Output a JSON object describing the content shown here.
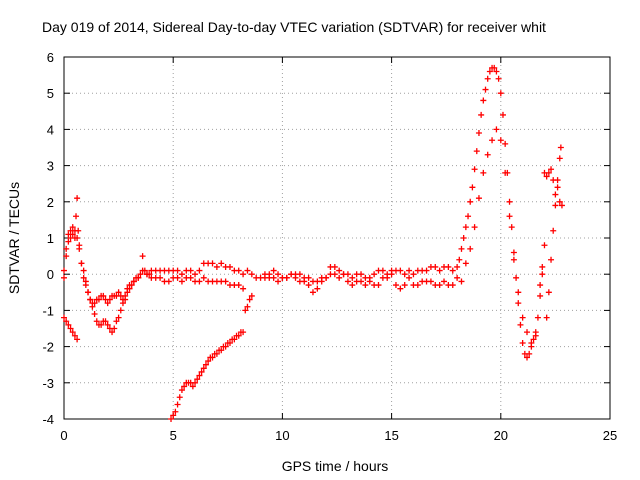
{
  "chart_data": {
    "type": "scatter",
    "title": "Day 019 of 2014, Sidereal Day-to-day VTEC variation (SDTVAR) for receiver whit",
    "xlabel": "GPS time / hours",
    "ylabel": "SDTVAR / TECUs",
    "xlim": [
      0,
      25
    ],
    "ylim": [
      -4,
      6
    ],
    "xticks": [
      "0",
      "5",
      "10",
      "15",
      "20",
      "25"
    ],
    "yticks": [
      "-4",
      "-3",
      "-2",
      "-1",
      "0",
      "1",
      "2",
      "3",
      "4",
      "5",
      "6"
    ],
    "grid": true,
    "marker": "+",
    "marker_color": "#ff0000",
    "series": [
      {
        "name": "main",
        "x": [
          0.0,
          0.1,
          0.2,
          0.3,
          0.4,
          0.5,
          0.6,
          0.7,
          0.8,
          0.9,
          1.0,
          1.1,
          1.2,
          1.3,
          1.4,
          1.5,
          1.6,
          1.7,
          1.8,
          1.9,
          2.0,
          2.1,
          2.2,
          2.3,
          2.4,
          2.5,
          2.6,
          2.7,
          2.8,
          2.9,
          3.0,
          3.1,
          3.2,
          3.3,
          3.4,
          3.5,
          3.6,
          3.7,
          3.8,
          3.9,
          4.0,
          4.2,
          4.4,
          4.6,
          4.8,
          5.0,
          5.2,
          5.4,
          5.6,
          5.8,
          6.0,
          6.2,
          6.4,
          6.6,
          6.8,
          7.0,
          7.2,
          7.4,
          7.6,
          7.8,
          8.0,
          8.2,
          8.4,
          8.6,
          8.8,
          9.0,
          9.2,
          9.4,
          9.6,
          9.8,
          10.0,
          10.2,
          10.4,
          10.6,
          10.8,
          11.0,
          11.2,
          11.4,
          11.6,
          11.8,
          12.0,
          12.2,
          12.4,
          12.6,
          12.8,
          13.0,
          13.2,
          13.4,
          13.6,
          13.8,
          14.0,
          14.2,
          14.4,
          14.6,
          14.8,
          15.0,
          15.2,
          15.4,
          15.6,
          15.8,
          16.0,
          16.2,
          16.4,
          16.6,
          16.8,
          17.0,
          17.2,
          17.4,
          17.6,
          17.8,
          18.0,
          18.1,
          18.2,
          18.3,
          18.4,
          18.5,
          18.6,
          18.7,
          18.8,
          18.9,
          19.0,
          19.1,
          19.2,
          19.3,
          19.4,
          19.5,
          19.6,
          19.7,
          19.8,
          19.9,
          20.0,
          20.1,
          20.2,
          20.3,
          20.4,
          20.5,
          20.6,
          20.7,
          20.8,
          20.9,
          21.0,
          21.1,
          21.2,
          21.3,
          21.4,
          21.5,
          21.6,
          21.7,
          21.8,
          21.9
        ],
        "y": [
          0.1,
          0.7,
          1.1,
          1.2,
          1.3,
          1.2,
          1.0,
          0.7,
          0.3,
          0.1,
          -0.2,
          -0.5,
          -0.7,
          -0.8,
          -0.8,
          -0.7,
          -0.7,
          -0.6,
          -0.6,
          -0.7,
          -0.8,
          -0.7,
          -0.6,
          -0.6,
          -0.6,
          -0.5,
          -0.6,
          -0.7,
          -0.6,
          -0.4,
          -0.3,
          -0.3,
          -0.2,
          -0.1,
          -0.1,
          0.0,
          0.1,
          0.1,
          0.0,
          0.0,
          0.1,
          0.1,
          0.1,
          0.1,
          0.1,
          0.1,
          0.1,
          0.0,
          0.1,
          0.1,
          0.0,
          0.1,
          0.3,
          0.3,
          0.3,
          0.2,
          0.3,
          0.2,
          0.2,
          0.1,
          0.1,
          0.0,
          0.1,
          0.0,
          -0.1,
          -0.1,
          0.0,
          -0.1,
          -0.1,
          -0.2,
          -0.1,
          -0.1,
          0.0,
          -0.1,
          -0.2,
          -0.2,
          -0.1,
          -0.2,
          -0.2,
          -0.1,
          -0.1,
          0.0,
          0.0,
          -0.1,
          0.0,
          0.0,
          -0.1,
          0.0,
          0.0,
          -0.1,
          -0.1,
          0.0,
          0.1,
          0.1,
          0.0,
          0.0,
          0.1,
          0.1,
          0.0,
          0.1,
          0.0,
          0.1,
          0.1,
          0.1,
          0.2,
          0.2,
          0.1,
          0.2,
          0.2,
          0.1,
          0.2,
          0.4,
          0.7,
          1.0,
          1.3,
          1.6,
          2.0,
          2.4,
          2.9,
          3.4,
          3.9,
          4.4,
          4.8,
          5.1,
          5.4,
          5.6,
          5.7,
          5.7,
          5.6,
          5.4,
          5.0,
          4.4,
          3.6,
          2.8,
          2.0,
          1.3,
          0.6,
          -0.1,
          -0.8,
          -1.4,
          -1.9,
          -2.2,
          -2.3,
          -2.2,
          -2.0,
          -1.8,
          -1.6,
          -1.2,
          -0.6,
          0.0
        ]
      },
      {
        "name": "secondary",
        "x": [
          0.0,
          0.1,
          0.2,
          0.3,
          0.4,
          0.5,
          0.55,
          0.6,
          0.65,
          0.7,
          0.8,
          0.9,
          1.0,
          1.1,
          1.2,
          1.3,
          1.4,
          1.5,
          1.6,
          1.7,
          1.8,
          1.9,
          2.0,
          2.1,
          2.2,
          2.3,
          2.4,
          2.5,
          2.6,
          2.7,
          2.8,
          2.9,
          3.0,
          3.2,
          3.4,
          3.6,
          3.8,
          4.0,
          4.2,
          4.4,
          4.6,
          4.8,
          5.0,
          5.2,
          5.4,
          5.6,
          5.8,
          6.0,
          6.2,
          6.4,
          6.6,
          6.8,
          7.0,
          7.2,
          7.4,
          7.6,
          7.8,
          8.0,
          8.2,
          9.2,
          9.4,
          9.6,
          9.8,
          10.0,
          10.2,
          10.4,
          10.6,
          10.8,
          11.0,
          11.2,
          11.4,
          11.6,
          11.8,
          12.0,
          12.2,
          12.4,
          12.6,
          12.8,
          13.0,
          13.2,
          13.4,
          13.6,
          13.8,
          14.0,
          14.2,
          14.4,
          14.6,
          14.8,
          15.0,
          15.2,
          15.4,
          15.6,
          15.8,
          16.0,
          16.2,
          16.4,
          16.6,
          16.8,
          17.0,
          17.2,
          17.4,
          17.6,
          17.8,
          18.0,
          18.2,
          18.4,
          18.6,
          18.8,
          19.0,
          19.2,
          19.4,
          19.6,
          19.8,
          20.0,
          20.2,
          20.4,
          20.6,
          20.8,
          21.0,
          21.2,
          21.4,
          21.6
        ],
        "y": [
          -0.1,
          0.5,
          0.9,
          1.0,
          1.1,
          1.0,
          1.6,
          2.1,
          1.2,
          0.8,
          0.3,
          -0.1,
          -0.3,
          -0.5,
          -0.7,
          -0.9,
          -1.1,
          -1.3,
          -1.4,
          -1.4,
          -1.3,
          -1.3,
          -1.4,
          -1.5,
          -1.6,
          -1.5,
          -1.3,
          -1.2,
          -1.0,
          -0.8,
          -0.7,
          -0.5,
          -0.4,
          -0.2,
          -0.1,
          0.5,
          0.0,
          -0.1,
          -0.1,
          -0.1,
          -0.2,
          -0.2,
          -0.1,
          -0.1,
          -0.2,
          -0.1,
          -0.1,
          -0.2,
          -0.2,
          -0.1,
          -0.2,
          -0.2,
          -0.2,
          -0.2,
          -0.2,
          -0.3,
          -0.3,
          -0.3,
          -0.4,
          -0.1,
          0.0,
          0.1,
          0.0,
          -0.1,
          -0.1,
          0.0,
          0.0,
          0.0,
          -0.1,
          -0.3,
          -0.5,
          -0.4,
          -0.2,
          -0.1,
          0.2,
          0.2,
          0.1,
          0.0,
          -0.2,
          -0.3,
          -0.2,
          -0.2,
          -0.3,
          -0.2,
          -0.3,
          -0.3,
          -0.1,
          -0.1,
          0.1,
          -0.3,
          -0.4,
          -0.3,
          -0.1,
          -0.3,
          -0.3,
          -0.2,
          -0.2,
          -0.2,
          -0.3,
          -0.3,
          -0.2,
          -0.3,
          -0.3,
          -0.1,
          -0.2,
          0.3,
          0.7,
          1.3,
          2.1,
          2.8,
          3.3,
          3.7,
          4.0,
          3.7,
          2.8,
          1.6,
          0.4,
          -0.5,
          -1.2,
          -1.6,
          -1.9,
          -1.7
        ]
      },
      {
        "name": "segment-early-negative",
        "x": [
          0.0,
          0.1,
          0.2,
          0.3,
          0.4,
          0.5,
          0.6
        ],
        "y": [
          -1.2,
          -1.3,
          -1.4,
          -1.5,
          -1.6,
          -1.7,
          -1.8
        ]
      },
      {
        "name": "segment-rising-negative",
        "x": [
          4.9,
          5.0,
          5.1,
          5.2,
          5.3,
          5.4,
          5.5,
          5.6,
          5.7,
          5.8,
          5.9,
          6.0,
          6.1,
          6.2,
          6.3,
          6.4,
          6.5,
          6.6,
          6.7,
          6.8,
          6.9,
          7.0,
          7.1,
          7.2,
          7.3,
          7.4,
          7.5,
          7.6,
          7.7,
          7.8,
          7.9,
          8.0,
          8.1,
          8.2
        ],
        "y": [
          -4.0,
          -3.9,
          -3.8,
          -3.6,
          -3.4,
          -3.2,
          -3.1,
          -3.0,
          -3.0,
          -3.0,
          -3.1,
          -3.0,
          -2.9,
          -2.8,
          -2.7,
          -2.6,
          -2.5,
          -2.4,
          -2.3,
          -2.3,
          -2.2,
          -2.2,
          -2.1,
          -2.1,
          -2.0,
          -2.0,
          -1.9,
          -1.9,
          -1.8,
          -1.8,
          -1.7,
          -1.7,
          -1.6,
          -1.6
        ]
      },
      {
        "name": "segment-post-gap",
        "x": [
          8.3,
          8.4,
          8.5,
          8.6
        ],
        "y": [
          -1.0,
          -0.9,
          -0.7,
          -0.6
        ]
      },
      {
        "name": "segment-tail",
        "x": [
          21.8,
          21.9,
          22.0,
          22.1,
          22.2,
          22.3,
          22.4,
          22.5,
          22.6,
          22.7,
          22.75
        ],
        "y": [
          -0.3,
          0.2,
          0.8,
          -1.2,
          -0.5,
          0.4,
          1.2,
          1.9,
          2.6,
          3.2,
          3.5
        ]
      },
      {
        "name": "segment-tail-upper",
        "x": [
          22.0,
          22.1,
          22.2,
          22.3,
          22.4,
          22.5,
          22.6,
          22.7,
          22.8
        ],
        "y": [
          2.8,
          2.7,
          2.8,
          2.9,
          2.6,
          2.2,
          2.4,
          2.0,
          1.9
        ]
      }
    ]
  }
}
